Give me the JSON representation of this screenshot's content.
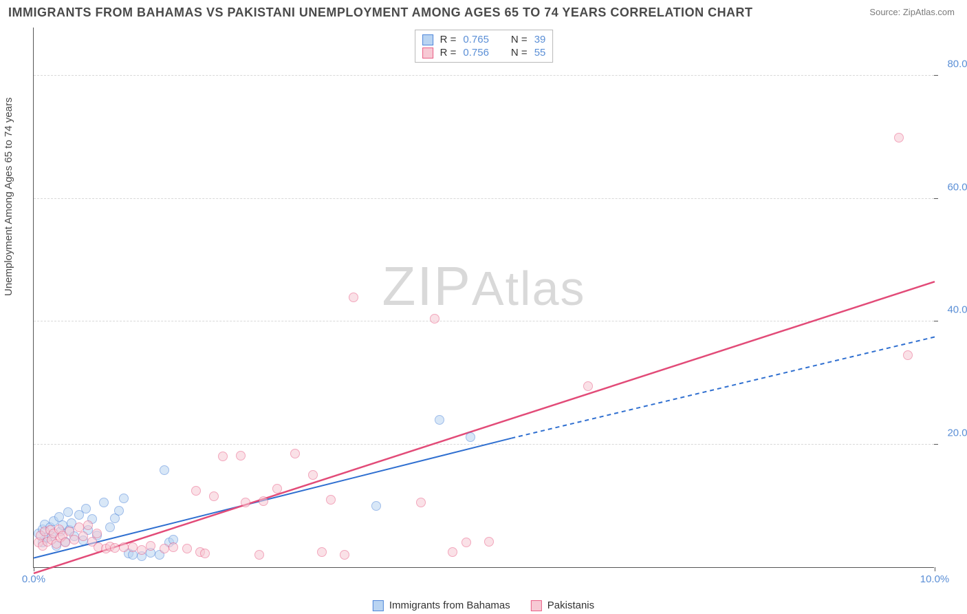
{
  "title": "IMMIGRANTS FROM BAHAMAS VS PAKISTANI UNEMPLOYMENT AMONG AGES 65 TO 74 YEARS CORRELATION CHART",
  "source_label": "Source:",
  "source_value": "ZipAtlas.com",
  "y_axis_label": "Unemployment Among Ages 65 to 74 years",
  "watermark_a": "ZIP",
  "watermark_b": "Atlas",
  "chart": {
    "type": "scatter",
    "background_color": "#ffffff",
    "grid_color": "#d8d8d8",
    "axis_color": "#555555",
    "tick_color": "#5b8fd6",
    "x_range": [
      0.0,
      10.0
    ],
    "y_range": [
      0.0,
      88.0
    ],
    "x_ticks": [
      {
        "v": 0.0,
        "label": "0.0%"
      },
      {
        "v": 10.0,
        "label": "10.0%"
      }
    ],
    "y_ticks": [
      {
        "v": 20.0,
        "label": "20.0%"
      },
      {
        "v": 40.0,
        "label": "40.0%"
      },
      {
        "v": 60.0,
        "label": "60.0%"
      },
      {
        "v": 80.0,
        "label": "80.0%"
      }
    ],
    "point_radius": 7,
    "point_opacity": 0.55
  },
  "r_legend": [
    {
      "swatch_fill": "#b9d4f2",
      "swatch_border": "#4f86d9",
      "r_label": "R =",
      "r": "0.765",
      "n_label": "N =",
      "n": "39"
    },
    {
      "swatch_fill": "#f7c9d4",
      "swatch_border": "#e95f86",
      "r_label": "R =",
      "r": "0.756",
      "n_label": "N =",
      "n": "55"
    }
  ],
  "bottom_legend": [
    {
      "swatch_fill": "#b9d4f2",
      "swatch_border": "#4f86d9",
      "label": "Immigrants from Bahamas"
    },
    {
      "swatch_fill": "#f7c9d4",
      "swatch_border": "#e95f86",
      "label": "Pakistanis"
    }
  ],
  "series": [
    {
      "name": "bahamas",
      "fill": "#b9d4f2",
      "border": "#4f86d9",
      "trend": {
        "x1": 0.0,
        "y1": 1.5,
        "x2": 5.3,
        "y2": 21.0,
        "dash_x1": 5.3,
        "dash_y1": 21.0,
        "dash_x2": 10.0,
        "dash_y2": 37.5,
        "color": "#2f6fd0",
        "width": 2
      },
      "points": [
        [
          0.05,
          5.5
        ],
        [
          0.1,
          4.0
        ],
        [
          0.1,
          6.2
        ],
        [
          0.12,
          7.0
        ],
        [
          0.15,
          4.8
        ],
        [
          0.18,
          6.5
        ],
        [
          0.2,
          5.0
        ],
        [
          0.22,
          7.5
        ],
        [
          0.25,
          3.5
        ],
        [
          0.28,
          8.2
        ],
        [
          0.3,
          5.8
        ],
        [
          0.32,
          6.8
        ],
        [
          0.35,
          4.2
        ],
        [
          0.38,
          9.0
        ],
        [
          0.4,
          6.0
        ],
        [
          0.42,
          7.2
        ],
        [
          0.45,
          5.0
        ],
        [
          0.5,
          8.5
        ],
        [
          0.55,
          4.4
        ],
        [
          0.58,
          9.5
        ],
        [
          0.6,
          6.0
        ],
        [
          0.65,
          7.8
        ],
        [
          0.7,
          5.2
        ],
        [
          0.78,
          10.5
        ],
        [
          0.85,
          6.5
        ],
        [
          0.9,
          8.0
        ],
        [
          0.95,
          9.2
        ],
        [
          1.0,
          11.2
        ],
        [
          1.05,
          2.2
        ],
        [
          1.1,
          2.0
        ],
        [
          1.2,
          1.8
        ],
        [
          1.3,
          2.3
        ],
        [
          1.4,
          2.0
        ],
        [
          1.45,
          15.8
        ],
        [
          1.5,
          4.0
        ],
        [
          1.55,
          4.5
        ],
        [
          3.8,
          10.0
        ],
        [
          4.5,
          24.0
        ],
        [
          4.85,
          21.2
        ]
      ]
    },
    {
      "name": "pakistanis",
      "fill": "#f7c9d4",
      "border": "#e95f86",
      "trend": {
        "x1": 0.0,
        "y1": -1.0,
        "x2": 10.0,
        "y2": 46.5,
        "color": "#e24b78",
        "width": 2.5
      },
      "points": [
        [
          0.05,
          4.0
        ],
        [
          0.08,
          5.2
        ],
        [
          0.1,
          3.5
        ],
        [
          0.12,
          5.8
        ],
        [
          0.15,
          4.2
        ],
        [
          0.18,
          6.0
        ],
        [
          0.2,
          4.5
        ],
        [
          0.22,
          5.5
        ],
        [
          0.25,
          3.8
        ],
        [
          0.28,
          6.2
        ],
        [
          0.3,
          4.8
        ],
        [
          0.32,
          5.2
        ],
        [
          0.35,
          4.0
        ],
        [
          0.4,
          5.8
        ],
        [
          0.45,
          4.5
        ],
        [
          0.5,
          6.5
        ],
        [
          0.55,
          5.0
        ],
        [
          0.6,
          6.8
        ],
        [
          0.65,
          4.2
        ],
        [
          0.7,
          5.5
        ],
        [
          0.72,
          3.2
        ],
        [
          0.8,
          3.0
        ],
        [
          0.85,
          3.4
        ],
        [
          0.9,
          3.1
        ],
        [
          1.0,
          3.3
        ],
        [
          1.1,
          3.2
        ],
        [
          1.2,
          2.8
        ],
        [
          1.3,
          3.5
        ],
        [
          1.45,
          3.0
        ],
        [
          1.55,
          3.2
        ],
        [
          1.7,
          3.0
        ],
        [
          1.8,
          12.5
        ],
        [
          1.85,
          2.5
        ],
        [
          1.9,
          2.2
        ],
        [
          2.0,
          11.5
        ],
        [
          2.1,
          18.0
        ],
        [
          2.3,
          18.2
        ],
        [
          2.35,
          10.5
        ],
        [
          2.5,
          2.0
        ],
        [
          2.55,
          10.8
        ],
        [
          2.7,
          12.8
        ],
        [
          2.9,
          18.5
        ],
        [
          3.1,
          15.0
        ],
        [
          3.2,
          2.5
        ],
        [
          3.3,
          11.0
        ],
        [
          3.45,
          2.0
        ],
        [
          3.55,
          44.0
        ],
        [
          4.3,
          10.5
        ],
        [
          4.45,
          40.5
        ],
        [
          4.65,
          2.5
        ],
        [
          4.8,
          4.0
        ],
        [
          5.05,
          4.2
        ],
        [
          6.15,
          29.5
        ],
        [
          9.6,
          70.0
        ],
        [
          9.7,
          34.5
        ]
      ]
    }
  ]
}
